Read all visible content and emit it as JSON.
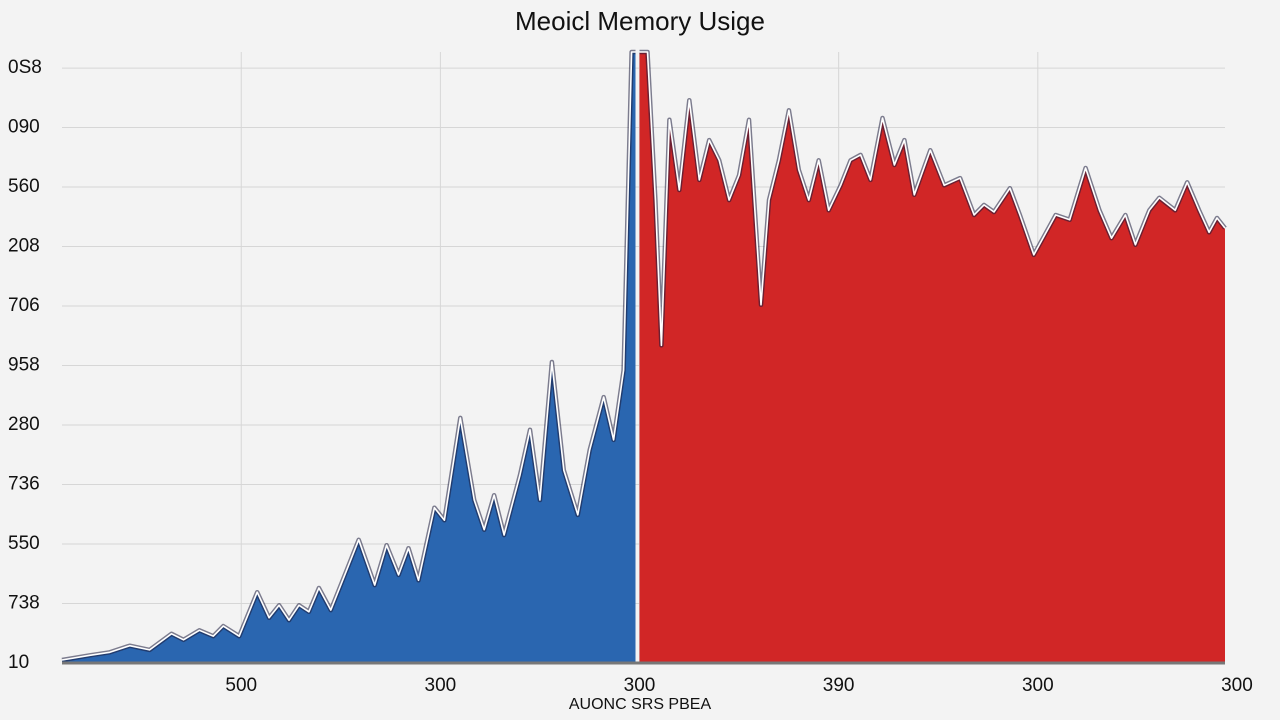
{
  "chart_data": {
    "type": "area",
    "title": "Meoicl Memory Usige",
    "x_label": "AUONC SRS PBEA",
    "grid": true,
    "xlim": [
      0.1,
      5.94
    ],
    "ylim": [
      0,
      10.27
    ],
    "xticks": [
      {
        "value": 1,
        "label": "500"
      },
      {
        "value": 2,
        "label": "300"
      },
      {
        "value": 3,
        "label": "300"
      },
      {
        "value": 4,
        "label": "390"
      },
      {
        "value": 5,
        "label": "300"
      },
      {
        "value": 6,
        "label": "300"
      }
    ],
    "yticks": [
      {
        "value": 0,
        "label": "10"
      },
      {
        "value": 1,
        "label": "738"
      },
      {
        "value": 2,
        "label": "550"
      },
      {
        "value": 3,
        "label": "736"
      },
      {
        "value": 4,
        "label": "280"
      },
      {
        "value": 5,
        "label": "958"
      },
      {
        "value": 6,
        "label": "706"
      },
      {
        "value": 7,
        "label": "208"
      },
      {
        "value": 8,
        "label": "560"
      },
      {
        "value": 9,
        "label": "090"
      },
      {
        "value": 10,
        "label": "0S8"
      }
    ],
    "series": [
      {
        "color": "#2a66b0",
        "x": [
          0.1,
          0.24,
          0.34,
          0.44,
          0.54,
          0.65,
          0.71,
          0.79,
          0.86,
          0.91,
          0.99,
          1.08,
          1.14,
          1.19,
          1.24,
          1.29,
          1.34,
          1.39,
          1.45,
          1.52,
          1.59,
          1.67,
          1.73,
          1.79,
          1.84,
          1.89,
          1.97,
          2.02,
          2.1,
          2.17,
          2.22,
          2.27,
          2.32,
          2.4,
          2.45,
          2.5,
          2.56,
          2.62,
          2.69,
          2.75,
          2.82,
          2.87,
          2.92,
          2.96,
          2.98
        ],
        "values": [
          0.05,
          0.13,
          0.18,
          0.29,
          0.22,
          0.49,
          0.39,
          0.55,
          0.45,
          0.62,
          0.45,
          1.19,
          0.76,
          0.97,
          0.72,
          0.97,
          0.86,
          1.26,
          0.89,
          1.48,
          2.07,
          1.31,
          1.98,
          1.48,
          1.93,
          1.39,
          2.61,
          2.4,
          4.12,
          2.74,
          2.24,
          2.82,
          2.15,
          3.16,
          3.92,
          2.74,
          5.06,
          3.24,
          2.49,
          3.58,
          4.47,
          3.75,
          4.92,
          10.27,
          10.27
        ]
      },
      {
        "color": "#d12626",
        "x": [
          3.0,
          3.04,
          3.08,
          3.11,
          3.15,
          3.2,
          3.25,
          3.3,
          3.35,
          3.4,
          3.45,
          3.5,
          3.55,
          3.61,
          3.65,
          3.7,
          3.75,
          3.8,
          3.85,
          3.9,
          3.95,
          4.01,
          4.06,
          4.11,
          4.16,
          4.22,
          4.28,
          4.33,
          4.38,
          4.46,
          4.53,
          4.61,
          4.68,
          4.73,
          4.78,
          4.86,
          4.91,
          4.98,
          5.09,
          5.16,
          5.24,
          5.31,
          5.37,
          5.44,
          5.49,
          5.56,
          5.61,
          5.69,
          5.75,
          5.81,
          5.86,
          5.9,
          5.94
        ],
        "values": [
          10.27,
          10.27,
          7.78,
          5.34,
          9.13,
          7.95,
          9.46,
          8.12,
          8.79,
          8.45,
          7.78,
          8.2,
          9.13,
          6.02,
          7.78,
          8.45,
          9.29,
          8.29,
          7.78,
          8.45,
          7.61,
          8.03,
          8.45,
          8.54,
          8.12,
          9.16,
          8.37,
          8.79,
          7.87,
          8.62,
          8.03,
          8.15,
          7.53,
          7.7,
          7.58,
          7.98,
          7.53,
          6.86,
          7.53,
          7.45,
          8.32,
          7.61,
          7.14,
          7.53,
          7.03,
          7.61,
          7.82,
          7.61,
          8.08,
          7.61,
          7.24,
          7.48,
          7.31
        ]
      }
    ]
  }
}
